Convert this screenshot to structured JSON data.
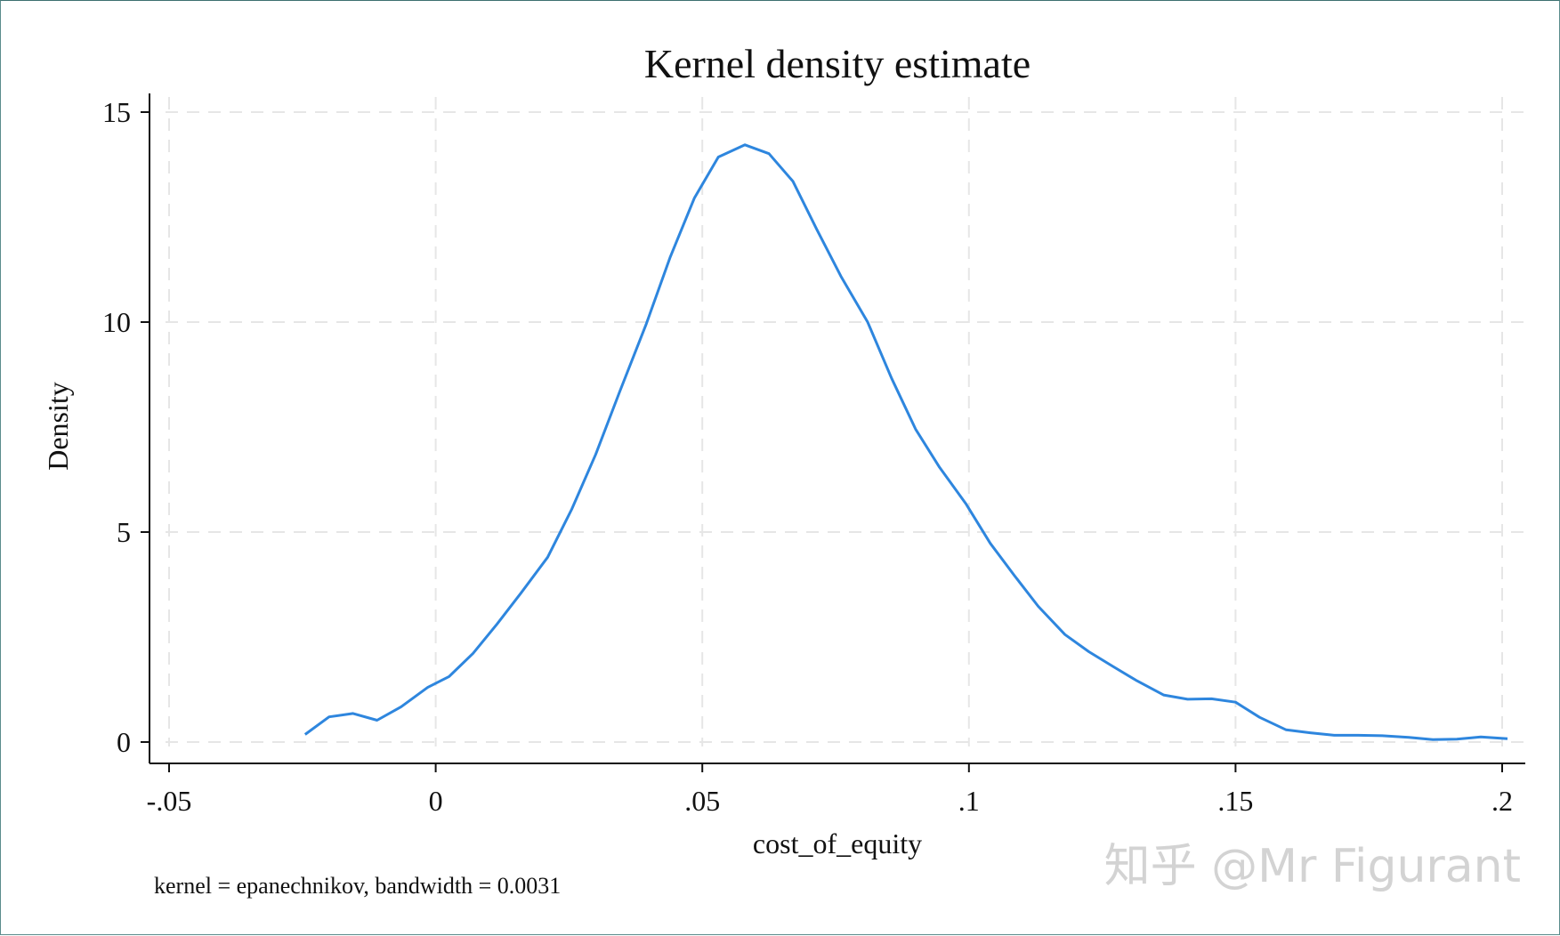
{
  "chart_data": {
    "type": "line",
    "title": "Kernel density estimate",
    "xlabel": "cost_of_equity",
    "ylabel": "Density",
    "note": "kernel = epanechnikov, bandwidth = 0.0031",
    "xlim": [
      -0.05,
      0.2
    ],
    "ylim": [
      0,
      15
    ],
    "xticks": [
      -0.05,
      0,
      0.05,
      0.1,
      0.15,
      0.2
    ],
    "xtick_labels": [
      "-.05",
      "0",
      ".05",
      ".1",
      ".15",
      ".2"
    ],
    "yticks": [
      0,
      5,
      10,
      15
    ],
    "ytick_labels": [
      "0",
      "5",
      "10",
      "15"
    ],
    "grid": true,
    "line_color": "#2e86de",
    "series": [
      {
        "x": [
          -0.0245,
          -0.02,
          -0.0155,
          -0.011,
          -0.0065,
          -0.0015,
          0.0025,
          0.007,
          0.0115,
          0.016,
          0.021,
          0.0255,
          0.03,
          0.0345,
          0.0395,
          0.044,
          0.0485,
          0.053,
          0.058,
          0.0625,
          0.067,
          0.0715,
          0.076,
          0.081,
          0.0855,
          0.09,
          0.0945,
          0.0995,
          0.104,
          0.1085,
          0.113,
          0.118,
          0.1225,
          0.127,
          0.1315,
          0.1365,
          0.141,
          0.1455,
          0.15,
          0.1545,
          0.1595,
          0.164,
          0.1685,
          0.173,
          0.1775,
          0.1825,
          0.187,
          0.1915,
          0.196,
          0.201
        ],
        "y": [
          0.18,
          0.6,
          0.68,
          0.52,
          0.84,
          1.3,
          1.56,
          2.11,
          2.81,
          3.55,
          4.4,
          5.54,
          6.85,
          8.34,
          9.96,
          11.55,
          12.95,
          13.93,
          14.22,
          14.01,
          13.35,
          12.2,
          11.09,
          10.0,
          8.66,
          7.45,
          6.54,
          5.66,
          4.73,
          3.97,
          3.23,
          2.56,
          2.15,
          1.8,
          1.46,
          1.12,
          1.02,
          1.03,
          0.95,
          0.59,
          0.29,
          0.22,
          0.16,
          0.16,
          0.15,
          0.11,
          0.06,
          0.07,
          0.12,
          0.08
        ]
      }
    ]
  },
  "watermark": "知乎 @Mr Figurant"
}
